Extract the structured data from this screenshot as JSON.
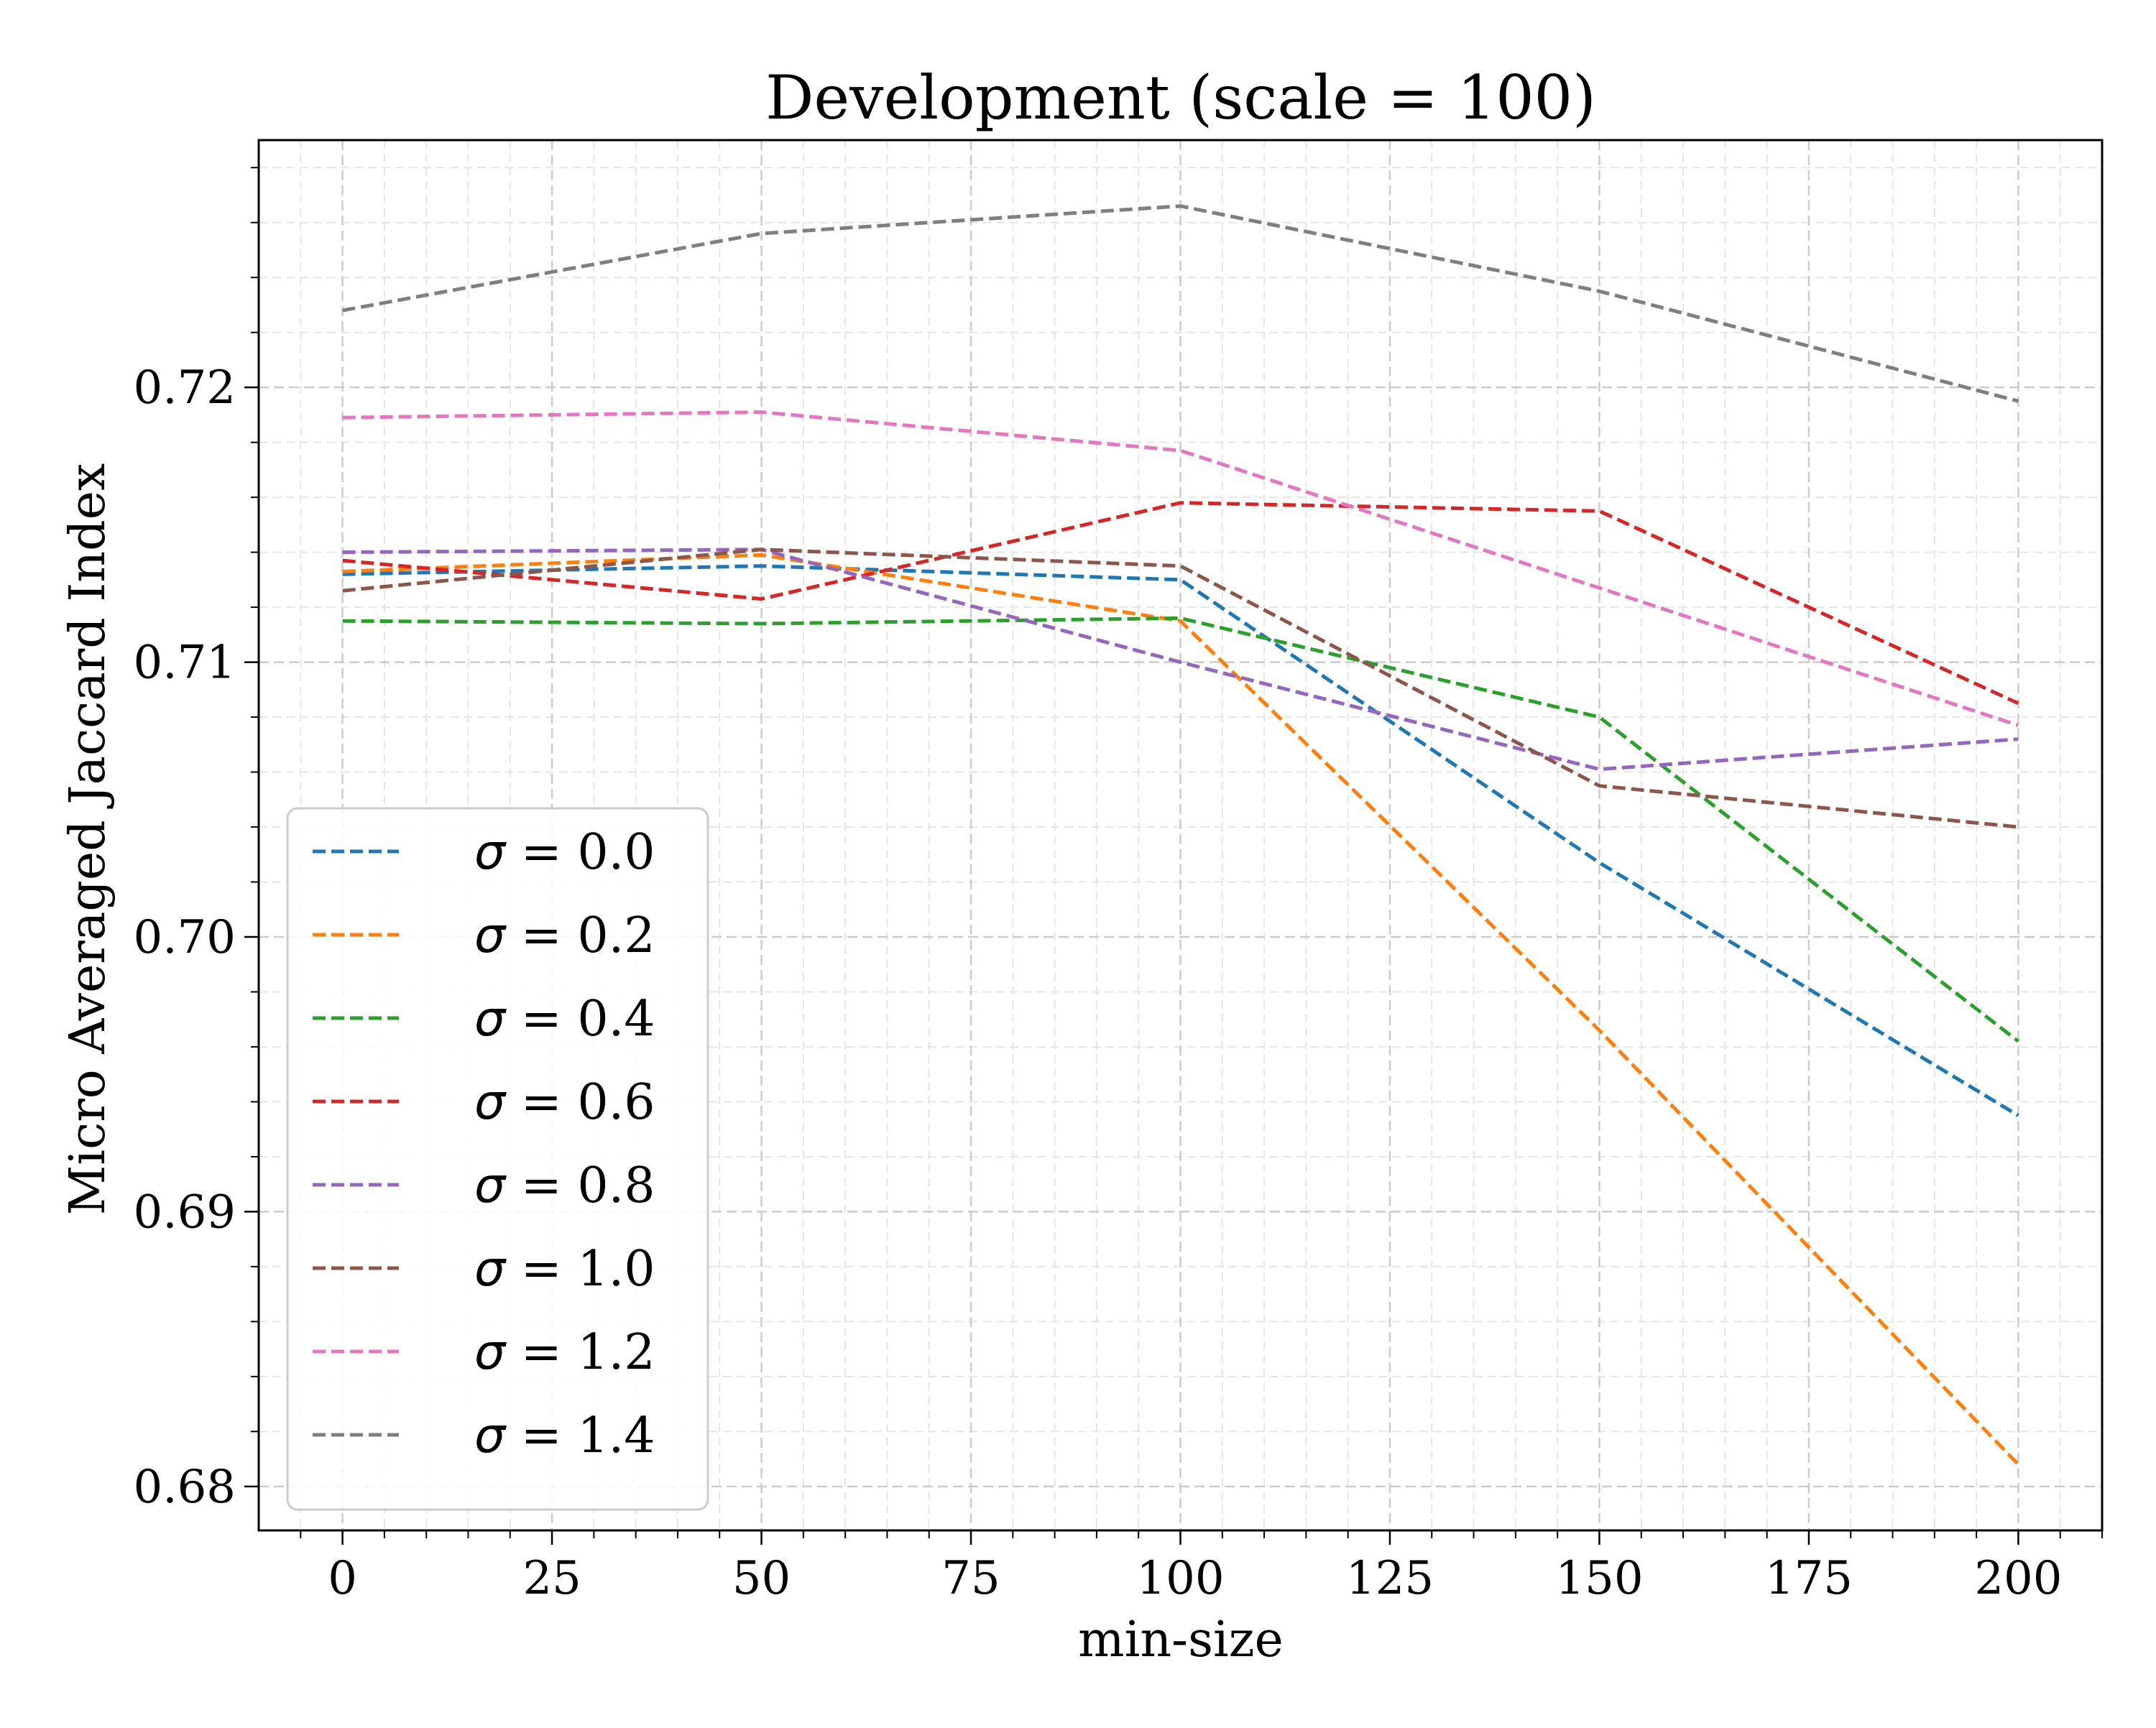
{
  "chart_data": {
    "type": "line",
    "title": "Development (scale = 100)",
    "xlabel": "min-size",
    "ylabel": "Micro Averaged Jaccard Index",
    "x": [
      0,
      50,
      100,
      150,
      200
    ],
    "xlim": [
      -10,
      210
    ],
    "ylim": [
      0.6784,
      0.729
    ],
    "xticks": [
      0,
      25,
      50,
      75,
      100,
      125,
      150,
      175,
      200
    ],
    "yticks": [
      0.68,
      0.69,
      0.7,
      0.71,
      0.72
    ],
    "xtick_labels": [
      "0",
      "25",
      "50",
      "75",
      "100",
      "125",
      "150",
      "175",
      "200"
    ],
    "ytick_labels": [
      "0.68",
      "0.69",
      "0.70",
      "0.71",
      "0.72"
    ],
    "grid": true,
    "minor_grid": true,
    "line_style": "dashed",
    "legend_position": "lower-left",
    "series": [
      {
        "name": "σ = 0.0",
        "label_symbol": "σ",
        "label_value": " = 0.0",
        "color": "#1f77b4",
        "values": [
          0.7132,
          0.7135,
          0.713,
          0.7027,
          0.6935
        ]
      },
      {
        "name": "σ = 0.2",
        "label_symbol": "σ",
        "label_value": " = 0.2",
        "color": "#ff7f0e",
        "values": [
          0.7133,
          0.7139,
          0.7115,
          0.6966,
          0.6808
        ]
      },
      {
        "name": "σ = 0.4",
        "label_symbol": "σ",
        "label_value": " = 0.4",
        "color": "#2ca02c",
        "values": [
          0.7115,
          0.7114,
          0.7116,
          0.708,
          0.6962
        ]
      },
      {
        "name": "σ = 0.6",
        "label_symbol": "σ",
        "label_value": " = 0.6",
        "color": "#d62728",
        "values": [
          0.7137,
          0.7123,
          0.7158,
          0.7155,
          0.7085
        ]
      },
      {
        "name": "σ = 0.8",
        "label_symbol": "σ",
        "label_value": " = 0.8",
        "color": "#9467bd",
        "values": [
          0.714,
          0.7141,
          0.71,
          0.7061,
          0.7072
        ]
      },
      {
        "name": "σ = 1.0",
        "label_symbol": "σ",
        "label_value": " = 1.0",
        "color": "#8c564b",
        "values": [
          0.7126,
          0.7141,
          0.7135,
          0.7055,
          0.704
        ]
      },
      {
        "name": "σ = 1.2",
        "label_symbol": "σ",
        "label_value": " = 1.2",
        "color": "#e377c2",
        "values": [
          0.7189,
          0.7191,
          0.7177,
          0.7127,
          0.7077
        ]
      },
      {
        "name": "σ = 1.4",
        "label_symbol": "σ",
        "label_value": " = 1.4",
        "color": "#7f7f7f",
        "values": [
          0.7228,
          0.7256,
          0.7266,
          0.7235,
          0.7195
        ]
      }
    ]
  }
}
